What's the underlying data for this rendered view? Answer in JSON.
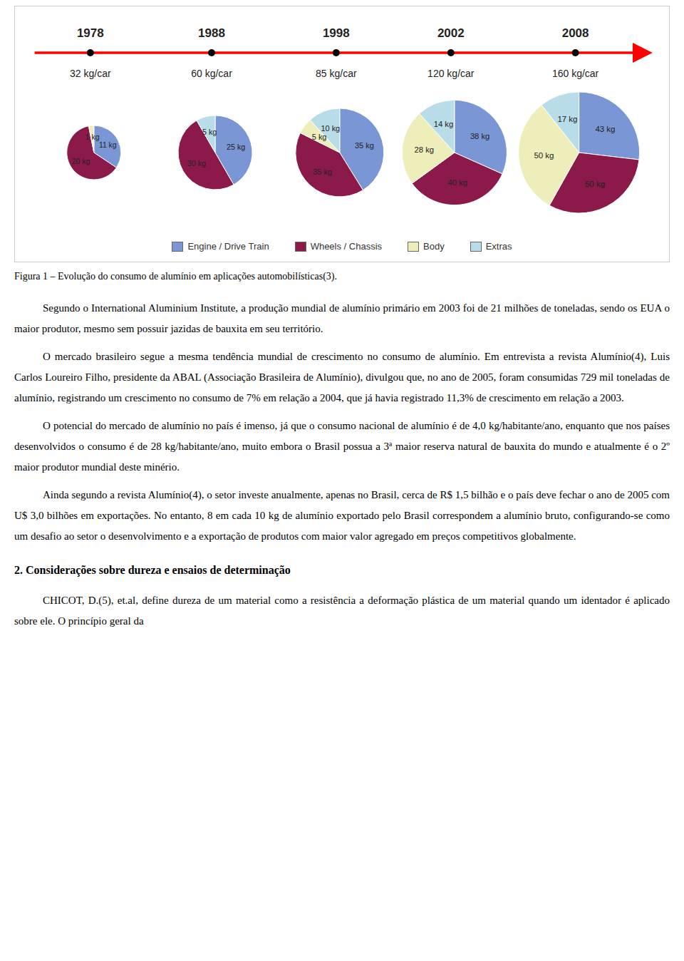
{
  "title": "Figura 1 – Evolução do consumo de alumínio em aplicações automobilísticas(3).",
  "annotations": [
    "Segundo o International Aluminium Institute, a produção mundial de alumínio primário em 2003 foi de 21 milhões de toneladas, sendo os EUA o maior produtor, mesmo sem possuir jazidas de bauxita em seu território.",
    "O mercado brasileiro segue a mesma tendência mundial de crescimento no consumo de alumínio. Em entrevista a revista Alumínio(4), Luis Carlos Loureiro Filho, presidente da ABAL (Associação Brasileira de Alumínio), divulgou que, no ano de 2005, foram consumidas 729 mil toneladas de alumínio, registrando um crescimento no consumo de 7% em relação a 2004, que já havia registrado 11,3% de crescimento em relação a 2003.",
    "O potencial do mercado de alumínio no país é imenso, já que o consumo nacional de alumínio é de 4,0 kg/habitante/ano, enquanto que nos países desenvolvidos o consumo é de 28 kg/habitante/ano, muito embora o Brasil possua a 3ª maior reserva natural de bauxita do mundo e atualmente é o 2º maior produtor mundial deste minério.",
    "Ainda segundo a revista Alumínio(4), o setor investe anualmente, apenas no Brasil, cerca de R$ 1,5 bilhão e o país deve fechar o ano de 2005 com U$ 3,0 bilhões em exportações. No entanto, 8 em cada 10 kg de alumínio exportado pelo Brasil correspondem a alumínio bruto, configurando-se como um desafio ao setor o desenvolvimento e a exportação de produtos com maior valor agregado em preços competitivos globalmente.",
    "2. Considerações sobre dureza e ensaios de determinação",
    "CHICOT, D.(5), et.al, define dureza de um material como a resistência a deformação plástica de um material quando um identador é aplicado sobre ele. O princípio geral da"
  ],
  "chart_data": [
    {
      "type": "pie",
      "title": "1978",
      "subtitle": "32 kg/car",
      "categories": [
        "Engine / Drive Train",
        "Wheels / Chassis",
        "Body"
      ],
      "values": [
        11,
        20,
        1
      ],
      "value_labels": [
        "11 kg",
        "20 kg",
        "1 kg"
      ],
      "colors": [
        "#7b96d4",
        "#8b1a4a",
        "#eeeebb"
      ],
      "data_labels": true,
      "legend": "bottom"
    },
    {
      "type": "pie",
      "title": "1988",
      "subtitle": "60 kg/car",
      "categories": [
        "Engine / Drive Train",
        "Wheels / Chassis",
        "Extras"
      ],
      "values": [
        25,
        30,
        5
      ],
      "value_labels": [
        "25 kg",
        "30 kg",
        "5 kg"
      ],
      "colors": [
        "#7b96d4",
        "#8b1a4a",
        "#b8dce8"
      ],
      "data_labels": true,
      "legend": "bottom"
    },
    {
      "type": "pie",
      "title": "1998",
      "subtitle": "85 kg/car",
      "categories": [
        "Engine / Drive Train",
        "Wheels / Chassis",
        "Body",
        "Extras"
      ],
      "values": [
        35,
        35,
        5,
        10
      ],
      "value_labels": [
        "35 kg",
        "35 kg",
        "5 kg",
        "10 kg"
      ],
      "colors": [
        "#7b96d4",
        "#8b1a4a",
        "#eeeebb",
        "#b8dce8"
      ],
      "data_labels": true,
      "legend": "bottom"
    },
    {
      "type": "pie",
      "title": "2002",
      "subtitle": "120 kg/car",
      "categories": [
        "Engine / Drive Train",
        "Wheels / Chassis",
        "Body",
        "Extras"
      ],
      "values": [
        38,
        40,
        28,
        14
      ],
      "value_labels": [
        "38 kg",
        "40 kg",
        "28 kg",
        "14 kg"
      ],
      "colors": [
        "#7b96d4",
        "#8b1a4a",
        "#eeeebb",
        "#b8dce8"
      ],
      "data_labels": true,
      "legend": "bottom"
    },
    {
      "type": "pie",
      "title": "2008",
      "subtitle": "160 kg/car",
      "categories": [
        "Engine / Drive Train",
        "Wheels / Chassis",
        "Body",
        "Extras"
      ],
      "values": [
        43,
        50,
        50,
        17
      ],
      "value_labels": [
        "43 kg",
        "50 kg",
        "50 kg",
        "17 kg"
      ],
      "colors": [
        "#7b96d4",
        "#8b1a4a",
        "#eeeebb",
        "#b8dce8"
      ],
      "data_labels": true,
      "legend": "bottom"
    }
  ]
}
